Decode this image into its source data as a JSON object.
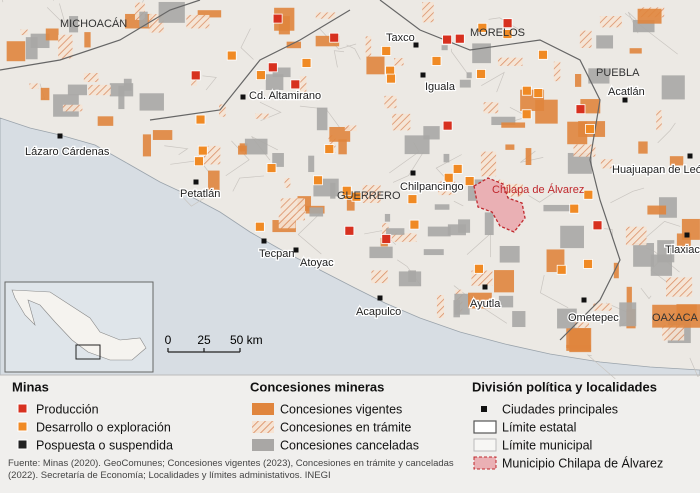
{
  "map": {
    "regions": [
      "MICHOACÁN",
      "MORELOS",
      "PUEBLA",
      "GUERRERO",
      "OAXACA"
    ],
    "cities": [
      "Taxco",
      "Iguala",
      "Cd. Altamirano",
      "Acatlán",
      "Lázaro Cárdenas",
      "Huajuapan de León",
      "Chilpancingo",
      "Petatlán",
      "Tecpan",
      "Atoyac",
      "Tlaxiaco",
      "Acapulco",
      "Ayutla",
      "Ometepec"
    ],
    "highlight": "Chilapa de Álvarez",
    "scale": [
      "0",
      "25",
      "50 km"
    ]
  },
  "legend": {
    "sections": [
      {
        "title": "Minas",
        "items": [
          "Producción",
          "Desarrollo o exploración",
          "Pospuesta o suspendida"
        ]
      },
      {
        "title": "Concesiones mineras",
        "items": [
          "Concesiones vigentes",
          "Concesiones en trámite",
          "Concesiones canceladas"
        ]
      },
      {
        "title": "División política y localidades",
        "items": [
          "Ciudades principales",
          "Límite estatal",
          "Límite municipal",
          "Municipio Chilapa de Álvarez"
        ]
      }
    ]
  },
  "source": "Fuente: Minas (2020). GeoComunes; Concesiones vigentes (2023), Concesiones en trámite y canceladas (2022). Secretaría de Economía; Localidades y límites administativos. INEGI"
}
